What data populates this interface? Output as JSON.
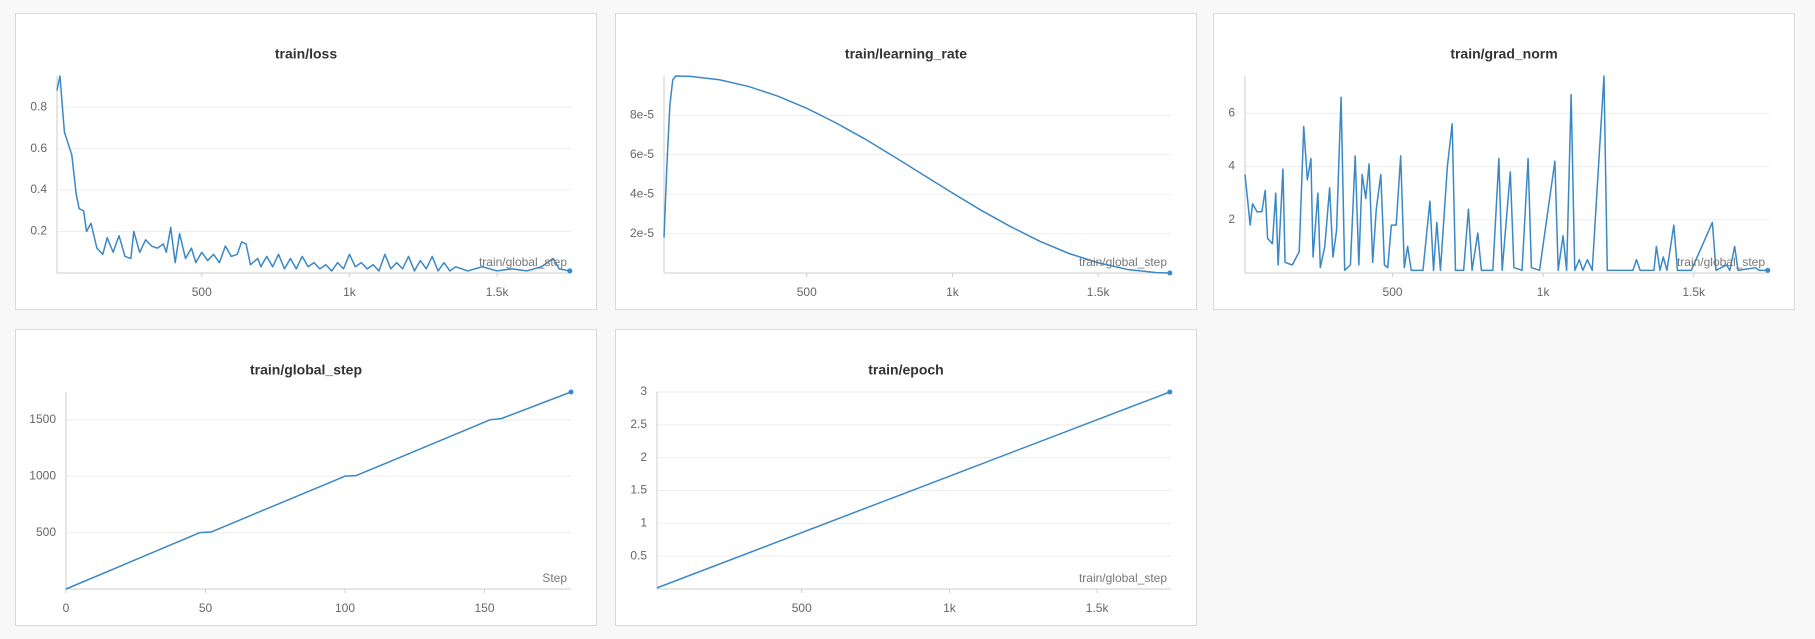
{
  "chart_data": [
    {
      "type": "line",
      "title": "train/loss",
      "x_label": "train/global_step",
      "color": "#3a88c6",
      "x": [
        10,
        20,
        35,
        60,
        75,
        85,
        100,
        110,
        125,
        145,
        165,
        180,
        200,
        220,
        240,
        260,
        270,
        290,
        310,
        330,
        350,
        370,
        380,
        395,
        410,
        425,
        445,
        465,
        480,
        500,
        520,
        540,
        560,
        580,
        600,
        620,
        635,
        650,
        665,
        690,
        700,
        720,
        740,
        760,
        780,
        800,
        820,
        840,
        860,
        880,
        900,
        920,
        940,
        960,
        980,
        1000,
        1020,
        1040,
        1060,
        1080,
        1100,
        1120,
        1140,
        1160,
        1180,
        1200,
        1220,
        1240,
        1260,
        1280,
        1300,
        1320,
        1340,
        1360,
        1400,
        1450,
        1500,
        1550,
        1600,
        1650,
        1690,
        1710,
        1746
      ],
      "values": [
        0.88,
        0.95,
        0.68,
        0.57,
        0.38,
        0.31,
        0.3,
        0.2,
        0.24,
        0.12,
        0.09,
        0.17,
        0.1,
        0.18,
        0.08,
        0.07,
        0.2,
        0.1,
        0.16,
        0.13,
        0.12,
        0.14,
        0.1,
        0.22,
        0.05,
        0.19,
        0.07,
        0.12,
        0.05,
        0.1,
        0.06,
        0.09,
        0.05,
        0.13,
        0.08,
        0.09,
        0.15,
        0.14,
        0.04,
        0.07,
        0.03,
        0.08,
        0.03,
        0.09,
        0.02,
        0.07,
        0.02,
        0.08,
        0.03,
        0.05,
        0.02,
        0.04,
        0.01,
        0.05,
        0.02,
        0.09,
        0.03,
        0.05,
        0.02,
        0.04,
        0.01,
        0.09,
        0.02,
        0.05,
        0.02,
        0.08,
        0.01,
        0.06,
        0.02,
        0.08,
        0.01,
        0.05,
        0.01,
        0.03,
        0.01,
        0.03,
        0.01,
        0.02,
        0.01,
        0.03,
        0.07,
        0.02,
        0.01
      ],
      "xlim": [
        10,
        1750
      ],
      "xticks": [
        500,
        {
          "value": 1000,
          "label": "1k"
        },
        {
          "value": 1500,
          "label": "1.5k"
        }
      ],
      "ylim": [
        0,
        0.95
      ],
      "yticks": [
        0.2,
        0.4,
        0.6,
        0.8
      ],
      "grid": true
    },
    {
      "type": "line",
      "title": "train/learning_rate",
      "x_label": "train/global_step",
      "color": "#3a88c6",
      "x": [
        10,
        20,
        30,
        40,
        50,
        100,
        200,
        300,
        400,
        500,
        600,
        700,
        800,
        900,
        1000,
        1100,
        1200,
        1300,
        1400,
        1500,
        1600,
        1700,
        1746
      ],
      "values": [
        1.8e-05,
        5.5e-05,
        8.5e-05,
        9.8e-05,
        0.0001,
        9.98e-05,
        9.81e-05,
        9.47e-05,
        8.98e-05,
        8.36e-05,
        7.62e-05,
        6.8e-05,
        5.9e-05,
        4.98e-05,
        4.06e-05,
        3.17e-05,
        2.35e-05,
        1.61e-05,
        9.9e-06,
        5.2e-06,
        1.8e-06,
        1.8e-07,
        0
      ],
      "xlim": [
        10,
        1750
      ],
      "xticks": [
        500,
        {
          "value": 1000,
          "label": "1k"
        },
        {
          "value": 1500,
          "label": "1.5k"
        }
      ],
      "ylim": [
        0,
        0.0001
      ],
      "yticks": [
        {
          "value": 2e-05,
          "label": "2e-5"
        },
        {
          "value": 4e-05,
          "label": "4e-5"
        },
        {
          "value": 6e-05,
          "label": "6e-5"
        },
        {
          "value": 8e-05,
          "label": "8e-5"
        }
      ],
      "grid": true
    },
    {
      "type": "line",
      "title": "train/grad_norm",
      "x_label": "train/global_step",
      "color": "#3a88c6",
      "x": [
        10,
        20,
        27,
        35,
        50,
        66,
        77,
        85,
        101,
        112,
        120,
        136,
        143,
        167,
        190,
        205,
        217,
        229,
        236,
        252,
        260,
        275,
        291,
        302,
        314,
        329,
        341,
        360,
        376,
        388,
        399,
        411,
        422,
        434,
        446,
        461,
        473,
        484,
        496,
        512,
        527,
        539,
        550,
        562,
        601,
        624,
        636,
        647,
        659,
        682,
        698,
        709,
        736,
        752,
        764,
        783,
        795,
        833,
        853,
        864,
        891,
        903,
        930,
        950,
        961,
        988,
        1039,
        1050,
        1066,
        1078,
        1093,
        1105,
        1120,
        1132,
        1147,
        1163,
        1202,
        1213,
        1298,
        1310,
        1322,
        1368,
        1376,
        1388,
        1399,
        1411,
        1434,
        1446,
        1492,
        1562,
        1574,
        1609,
        1620,
        1636,
        1647,
        1705,
        1717,
        1746
      ],
      "values": [
        3.7,
        2.6,
        1.8,
        2.6,
        2.3,
        2.3,
        3.1,
        1.3,
        1.1,
        3.0,
        0.3,
        3.9,
        0.4,
        0.3,
        0.8,
        5.5,
        3.5,
        4.3,
        0.6,
        3.0,
        0.2,
        1.0,
        3.2,
        0.6,
        1.6,
        6.6,
        0.1,
        0.3,
        4.4,
        0.3,
        3.7,
        2.8,
        4.1,
        0.4,
        2.4,
        3.7,
        0.3,
        0.2,
        1.8,
        1.8,
        4.4,
        0.2,
        1.0,
        0.1,
        0.1,
        2.7,
        0.1,
        1.9,
        0.1,
        4.0,
        5.6,
        0.1,
        0.1,
        2.4,
        0.1,
        1.5,
        0.1,
        0.1,
        4.3,
        0.1,
        3.8,
        0.2,
        0.1,
        4.3,
        0.2,
        0.1,
        4.2,
        0.1,
        1.4,
        0.1,
        6.7,
        0.1,
        0.5,
        0.1,
        0.5,
        0.1,
        7.4,
        0.1,
        0.1,
        0.5,
        0.1,
        0.1,
        1.0,
        0.1,
        0.6,
        0.1,
        1.8,
        0.1,
        0.1,
        1.9,
        0.1,
        0.3,
        0.1,
        1.0,
        0.1,
        0.2,
        0.1,
        0.1
      ],
      "xlim": [
        10,
        1750
      ],
      "xticks": [
        500,
        {
          "value": 1000,
          "label": "1k"
        },
        {
          "value": 1500,
          "label": "1.5k"
        }
      ],
      "ylim": [
        0,
        7.4
      ],
      "yticks": [
        2,
        4,
        6
      ],
      "grid": true
    },
    {
      "type": "line",
      "title": "train/global_step",
      "x_label": "Step",
      "color": "#3a88c6",
      "x": [
        0,
        48,
        52,
        100,
        104,
        152,
        156,
        181
      ],
      "values": [
        0,
        500,
        505,
        1000,
        1005,
        1500,
        1510,
        1746
      ],
      "xlim": [
        0,
        181
      ],
      "xticks": [
        0,
        50,
        100,
        150
      ],
      "ylim": [
        0,
        1746
      ],
      "yticks": [
        500,
        1000,
        1500
      ],
      "grid": true
    },
    {
      "type": "line",
      "title": "train/epoch",
      "x_label": "train/global_step",
      "color": "#3a88c6",
      "x": [
        10,
        1746
      ],
      "values": [
        0.017,
        3
      ],
      "xlim": [
        10,
        1750
      ],
      "xticks": [
        500,
        {
          "value": 1000,
          "label": "1k"
        },
        {
          "value": 1500,
          "label": "1.5k"
        }
      ],
      "ylim": [
        0,
        3
      ],
      "yticks": [
        0.5,
        1,
        1.5,
        2,
        2.5,
        3
      ],
      "grid": true
    }
  ]
}
